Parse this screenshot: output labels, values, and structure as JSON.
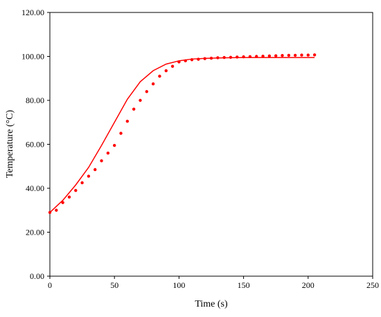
{
  "chart_data": {
    "type": "scatter",
    "title": "",
    "xlabel": "Time (s)",
    "ylabel": "Temperature (°C)",
    "xlim": [
      0,
      250
    ],
    "ylim": [
      0,
      120
    ],
    "grid": false,
    "x_ticks": [
      "0",
      "50",
      "100",
      "150",
      "200",
      "250"
    ],
    "y_ticks": [
      "0.00",
      "20.00",
      "40.00",
      "60.00",
      "80.00",
      "100.00",
      "120.00"
    ],
    "series_color": "#ff0000",
    "series": [
      {
        "style": "line",
        "x": [
          0,
          10,
          20,
          30,
          40,
          50,
          60,
          70,
          80,
          90,
          100,
          110,
          120,
          130,
          140,
          150,
          160,
          170,
          180,
          190,
          200,
          205
        ],
        "y": [
          29.0,
          34.5,
          41.5,
          49.5,
          59.5,
          70.0,
          80.5,
          88.5,
          93.5,
          96.5,
          98.0,
          98.8,
          99.1,
          99.3,
          99.4,
          99.5,
          99.5,
          99.5,
          99.5,
          99.5,
          99.5,
          99.5
        ]
      },
      {
        "style": "markers",
        "x": [
          0,
          5,
          10,
          15,
          20,
          25,
          30,
          35,
          40,
          45,
          50,
          55,
          60,
          65,
          70,
          75,
          80,
          85,
          90,
          95,
          100,
          105,
          110,
          115,
          120,
          125,
          130,
          135,
          140,
          145,
          150,
          155,
          160,
          165,
          170,
          175,
          180,
          185,
          190,
          195,
          200,
          205
        ],
        "y": [
          29.0,
          30.0,
          33.5,
          36.0,
          39.0,
          42.5,
          45.5,
          48.5,
          52.5,
          56.0,
          59.5,
          65.0,
          70.5,
          76.0,
          80.0,
          84.0,
          87.5,
          91.0,
          93.5,
          95.5,
          97.5,
          98.0,
          98.5,
          98.7,
          99.0,
          99.2,
          99.4,
          99.5,
          99.6,
          99.7,
          99.8,
          99.9,
          100.0,
          100.1,
          100.2,
          100.3,
          100.4,
          100.5,
          100.5,
          100.6,
          100.6,
          100.7
        ]
      }
    ]
  }
}
